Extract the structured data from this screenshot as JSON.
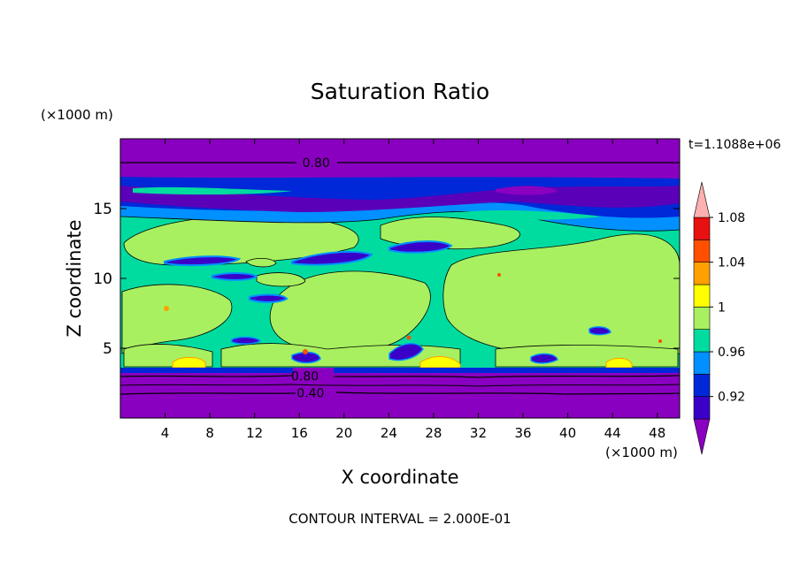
{
  "chart_data": {
    "type": "heatmap",
    "title": "Saturation Ratio",
    "xlabel": "X coordinate",
    "ylabel": "Z coordinate",
    "x_unit": "(×1000 m)",
    "y_unit": "(×1000 m)",
    "time_label": "t=1.1088e+06",
    "footer": "CONTOUR INTERVAL = 2.000E-01",
    "xlim": [
      0,
      50
    ],
    "ylim": [
      0,
      20
    ],
    "x_ticks": [
      "4",
      "8",
      "12",
      "16",
      "20",
      "24",
      "28",
      "32",
      "36",
      "40",
      "44",
      "48"
    ],
    "y_ticks": [
      "5",
      "10",
      "15"
    ],
    "colorbar": {
      "labels": [
        "0.92",
        "0.96",
        "1",
        "1.04",
        "1.08"
      ],
      "colors": [
        "#8a00c0",
        "#3a00c8",
        "#0028d8",
        "#0090ff",
        "#00dca0",
        "#a8f060",
        "#ffff00",
        "#ffa000",
        "#ff5000",
        "#e81010",
        "#ffb0b0"
      ]
    },
    "contour_labels": [
      {
        "text": "0.80",
        "x": 17.5,
        "y": 18.3
      },
      {
        "text": "0.80",
        "x": 16.5,
        "y": 3.0
      },
      {
        "text": "0.40",
        "x": 17.0,
        "y": 1.8
      }
    ],
    "bands": [
      {
        "level": "<0.90",
        "z": [
          0,
          3.3
        ]
      },
      {
        "level": "<0.90",
        "z": [
          17.3,
          20
        ]
      },
      {
        "level": "0.90-1.0",
        "z": [
          13.5,
          17.2
        ]
      },
      {
        "level": "0.98-1.0",
        "z": [
          3.4,
          13.5
        ]
      }
    ]
  }
}
